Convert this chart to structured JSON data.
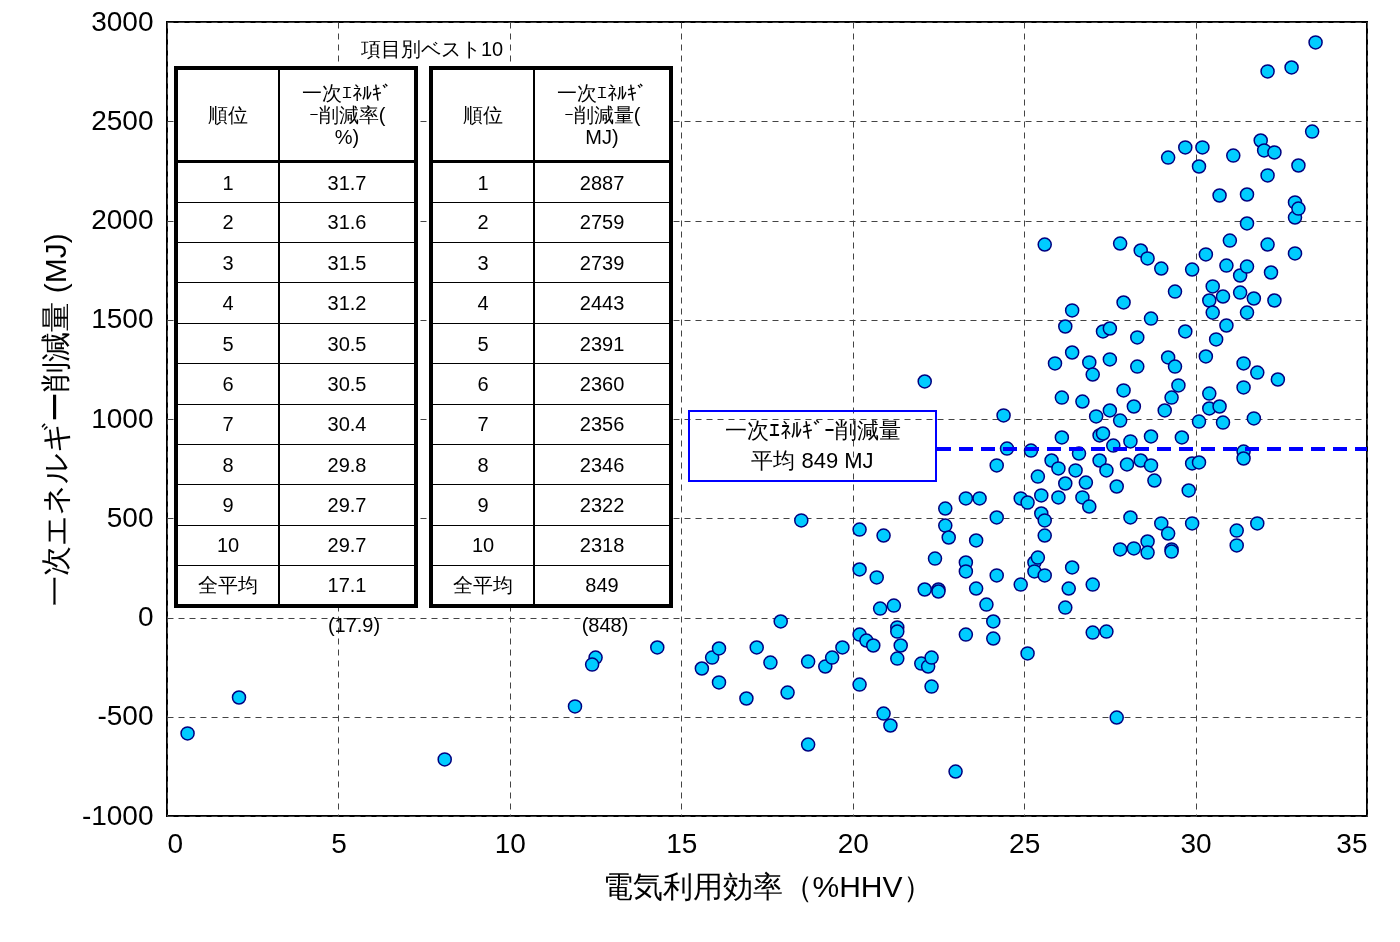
{
  "chart_data": {
    "type": "scatter",
    "xlabel": "電気利用効率（%HHV）",
    "ylabel": "一次エネルギー削減量 (MJ)",
    "xlim": [
      0,
      35
    ],
    "xticks": [
      0,
      5,
      10,
      15,
      20,
      25,
      30,
      35
    ],
    "ylim": [
      -1000,
      3000
    ],
    "yticks": [
      -1000,
      -500,
      0,
      500,
      1000,
      1500,
      2000,
      2500,
      3000
    ],
    "grid": true,
    "marker": "circle",
    "color": "#00ccff",
    "x": [
      0.6,
      2.1,
      8.1,
      11.9,
      12.5,
      12.4,
      14.3,
      15.6,
      15.9,
      16.1,
      16.1,
      16.9,
      17.2,
      17.6,
      17.9,
      18.1,
      18.5,
      18.7,
      18.7,
      19.2,
      19.4,
      19.7,
      20.2,
      20.2,
      20.2,
      20.2,
      20.4,
      20.6,
      20.7,
      20.9,
      20.9,
      20.8,
      21.1,
      21.2,
      21.3,
      21.3,
      21.4,
      21.3,
      22.0,
      22.1,
      22.2,
      22.3,
      22.3,
      22.1,
      22.4,
      22.5,
      22.5,
      22.7,
      22.8,
      22.7,
      23.0,
      23.3,
      23.3,
      23.3,
      23.3,
      23.6,
      23.7,
      23.6,
      23.9,
      24.1,
      24.1,
      24.2,
      24.2,
      24.2,
      24.4,
      24.5,
      24.9,
      24.9,
      25.1,
      25.1,
      25.2,
      25.3,
      25.3,
      25.4,
      25.4,
      25.5,
      25.5,
      25.6,
      25.6,
      25.6,
      25.6,
      25.8,
      25.9,
      26.0,
      26.0,
      26.1,
      26.2,
      26.1,
      26.2,
      26.2,
      26.3,
      26.4,
      26.4,
      26.4,
      26.5,
      26.6,
      26.7,
      26.7,
      26.8,
      26.9,
      26.9,
      27.0,
      27.0,
      27.1,
      27.2,
      27.0,
      27.2,
      27.3,
      27.3,
      27.4,
      27.4,
      27.5,
      27.5,
      27.5,
      27.6,
      27.7,
      27.7,
      27.8,
      27.8,
      27.8,
      27.9,
      27.9,
      28.0,
      28.1,
      28.1,
      28.2,
      28.2,
      28.3,
      28.3,
      28.4,
      28.4,
      28.6,
      28.6,
      28.6,
      28.7,
      28.7,
      28.7,
      28.8,
      29.0,
      29.0,
      29.1,
      29.2,
      29.2,
      29.2,
      29.3,
      29.3,
      29.3,
      29.4,
      29.4,
      29.5,
      29.6,
      29.7,
      29.7,
      29.8,
      29.9,
      29.9,
      29.9,
      30.1,
      30.1,
      30.1,
      30.2,
      30.3,
      30.4,
      30.3,
      30.4,
      30.4,
      30.5,
      30.5,
      30.6,
      30.7,
      30.7,
      30.8,
      30.8,
      30.9,
      30.9,
      31.1,
      31.0,
      31.2,
      31.2,
      31.3,
      31.3,
      31.4,
      31.4,
      31.5,
      31.5,
      31.5,
      31.5,
      31.4,
      31.4,
      31.7,
      31.8,
      31.7,
      31.8,
      31.9,
      32.0,
      32.1,
      32.1,
      32.1,
      32.2,
      32.3,
      32.3,
      32.4,
      32.8,
      32.9,
      32.9,
      32.9,
      33.0,
      33.0,
      33.4,
      33.5
    ],
    "values": [
      -584,
      -403,
      -715,
      -448,
      -202,
      -237,
      -151,
      -257,
      -202,
      -156,
      -327,
      -408,
      -151,
      -227,
      -20,
      -378,
      489,
      -640,
      -222,
      -247,
      -202,
      -151,
      443,
      242,
      -86,
      -338,
      -116,
      -141,
      202,
      -484,
      413,
      45,
      -544,
      60,
      -50,
      -71,
      -141,
      -207,
      -232,
      1189,
      -247,
      -202,
      -348,
      141,
      297,
      141,
      131,
      463,
      403,
      549,
      -776,
      600,
      -86,
      277,
      232,
      146,
      600,
      388,
      65,
      -20,
      -106,
      212,
      504,
      766,
      1018,
      851,
      600,
      166,
      -181,
      579,
      841,
      277,
      232,
      710,
      302,
      524,
      615,
      1879,
      489,
      413,
      212,
      791,
      1280,
      605,
      751,
      1108,
      1466,
      907,
      50,
      675,
      146,
      1547,
      1335,
      252,
      741,
      826,
      1088,
      605,
      680,
      559,
      1285,
      1224,
      166,
      1013,
      917,
      -76,
      791,
      927,
      1441,
      741,
      -71,
      1300,
      1456,
      1043,
      866,
      -504,
      660,
      992,
      1884,
      343,
      1587,
      1144,
      771,
      504,
      887,
      348,
      1063,
      1264,
      1411,
      1849,
      791,
      1809,
      383,
      327,
      1506,
      766,
      912,
      690,
      474,
      1758,
      1043,
      1310,
      423,
      2317,
      1108,
      343,
      332,
      1642,
      1264,
      1169,
      907,
      2368,
      1441,
      640,
      1753,
      474,
      776,
      781,
      987,
      2272,
      2368,
      1829,
      1597,
      1315,
      1128,
      1053,
      1668,
      1536,
      1401,
      1063,
      2126,
      1617,
      982,
      1471,
      1773,
      2327,
      1899,
      438,
      363,
      1723,
      1637,
      1159,
      1280,
      1985,
      2131,
      1768,
      1536,
      836,
      801,
      1607,
      1234,
      1003,
      474,
      2403,
      2353,
      1879,
      2751,
      2227,
      1738,
      1597,
      2343,
      1199,
      2771,
      2015,
      2091,
      1834,
      2277,
      2060,
      2448,
      2897
    ],
    "ref_lines": [
      {
        "axis": "y",
        "value": 849,
        "label": "一次ｴﾈﾙｷﾞｰ削減量平均 849 MJ",
        "color": "#0000ff",
        "line_style": "dashed"
      }
    ],
    "annotations": [
      "項目別ベスト10",
      "順位",
      "一次ｴﾈﾙｷﾞｰ削減率(%)",
      "1",
      "31.7",
      "2",
      "31.6",
      "3",
      "31.5",
      "4",
      "31.2",
      "5",
      "30.5",
      "6",
      "30.5",
      "7",
      "30.4",
      "8",
      "29.8",
      "9",
      "29.7",
      "10",
      "29.7",
      "全平均",
      "17.1",
      "順位",
      "一次ｴﾈﾙｷﾞｰ削減量(MJ)",
      "1",
      "2887",
      "2",
      "2759",
      "3",
      "2739",
      "4",
      "2443",
      "5",
      "2391",
      "6",
      "2360",
      "7",
      "2356",
      "8",
      "2346",
      "9",
      "2322",
      "10",
      "2318",
      "全平均",
      "849",
      "(17.9)",
      "(848)"
    ]
  }
}
